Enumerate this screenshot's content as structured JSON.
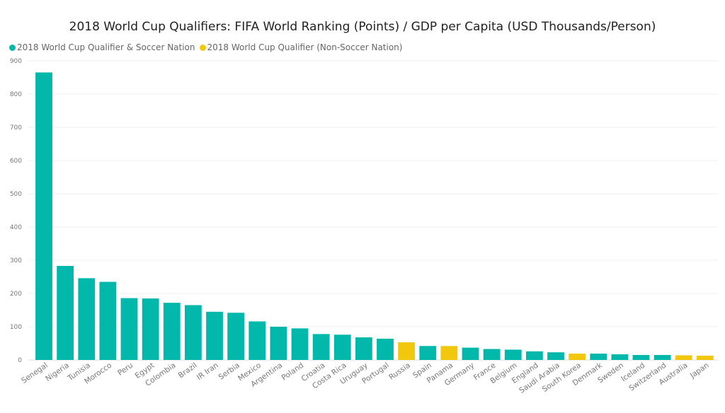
{
  "chart_data": {
    "type": "bar",
    "title": "2018 World Cup Qualifiers: FIFA World Ranking (Points) / GDP per Capita (USD Thousands/Person)",
    "legend": [
      {
        "name": "2018 World Cup Qualifier & Soccer Nation",
        "color": "#01B8AA"
      },
      {
        "name": "2018 World Cup Qualifier (Non-Soccer Nation)",
        "color": "#F2C80F"
      }
    ],
    "legend_position": "top-left",
    "categories": [
      "Senegal",
      "Nigeria",
      "Tunisia",
      "Morocco",
      "Peru",
      "Egypt",
      "Colombia",
      "Brazil",
      "IR Iran",
      "Serbia",
      "Mexico",
      "Argentina",
      "Poland",
      "Croatia",
      "Costa Rica",
      "Uruguay",
      "Portugal",
      "Russia",
      "Spain",
      "Panama",
      "Germany",
      "France",
      "Belgium",
      "England",
      "Saudi Arabia",
      "South Korea",
      "Denmark",
      "Sweden",
      "Iceland",
      "Switzerland",
      "Australia",
      "Japan"
    ],
    "values": [
      865,
      283,
      246,
      235,
      186,
      185,
      172,
      165,
      145,
      142,
      116,
      100,
      95,
      78,
      76,
      68,
      64,
      53,
      42,
      42,
      37,
      33,
      31,
      26,
      23,
      19,
      19,
      17,
      15,
      15,
      14,
      13
    ],
    "groups": [
      0,
      0,
      0,
      0,
      0,
      0,
      0,
      0,
      0,
      0,
      0,
      0,
      0,
      0,
      0,
      0,
      0,
      1,
      0,
      1,
      0,
      0,
      0,
      0,
      0,
      1,
      0,
      0,
      0,
      0,
      1,
      1
    ],
    "yticks": [
      "0",
      "100",
      "200",
      "300",
      "400",
      "500",
      "600",
      "700",
      "800",
      "900"
    ],
    "ylim": [
      0,
      900
    ],
    "grid": true,
    "xlabel": "",
    "ylabel": ""
  }
}
